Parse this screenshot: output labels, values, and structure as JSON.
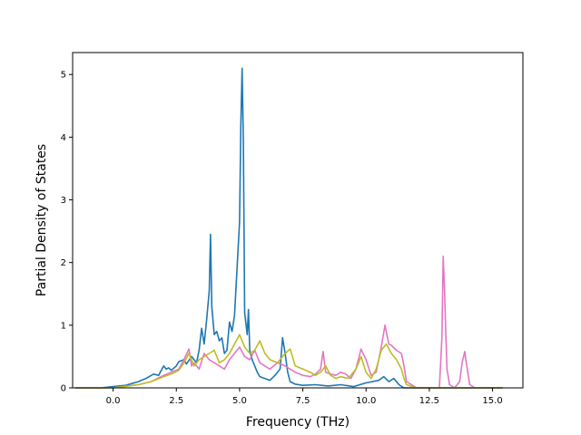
{
  "chart_data": {
    "type": "line",
    "title": "",
    "xlabel": "Frequency (THz)",
    "ylabel": "Partial Density of States",
    "xlim": [
      -1.6,
      16.2
    ],
    "ylim": [
      0,
      5.35
    ],
    "xticks": [
      0.0,
      2.5,
      5.0,
      7.5,
      10.0,
      12.5,
      15.0
    ],
    "xtick_labels": [
      "0.0",
      "2.5",
      "5.0",
      "7.5",
      "10.0",
      "12.5",
      "15.0"
    ],
    "yticks": [
      0,
      1,
      2,
      3,
      4,
      5
    ],
    "ytick_labels": [
      "0",
      "1",
      "2",
      "3",
      "4",
      "5"
    ],
    "grid": false,
    "legend": null,
    "series": [
      {
        "color": "#1f77b4",
        "x": [
          -1.5,
          -0.5,
          0.0,
          0.5,
          1.0,
          1.3,
          1.6,
          1.8,
          2.0,
          2.1,
          2.2,
          2.3,
          2.5,
          2.6,
          2.8,
          2.9,
          3.1,
          3.3,
          3.4,
          3.5,
          3.6,
          3.7,
          3.8,
          3.85,
          3.9,
          4.0,
          4.1,
          4.2,
          4.3,
          4.4,
          4.5,
          4.6,
          4.7,
          4.8,
          4.9,
          5.0,
          5.05,
          5.1,
          5.15,
          5.2,
          5.3,
          5.35,
          5.4,
          5.5,
          5.6,
          5.7,
          5.8,
          6.0,
          6.2,
          6.4,
          6.6,
          6.7,
          6.8,
          6.9,
          7.0,
          7.2,
          7.5,
          8.0,
          8.5,
          9.0,
          9.5,
          10.0,
          10.5,
          10.7,
          10.9,
          11.1,
          11.3,
          11.5,
          12.0,
          13.0,
          14.0,
          15.0,
          15.4
        ],
        "y": [
          0.0,
          0.0,
          0.02,
          0.04,
          0.1,
          0.15,
          0.22,
          0.2,
          0.35,
          0.3,
          0.32,
          0.28,
          0.35,
          0.42,
          0.45,
          0.38,
          0.5,
          0.4,
          0.6,
          0.95,
          0.7,
          1.1,
          1.55,
          2.45,
          1.3,
          0.85,
          0.9,
          0.75,
          0.8,
          0.55,
          0.6,
          1.05,
          0.9,
          1.15,
          1.9,
          2.65,
          4.2,
          5.1,
          3.9,
          1.2,
          0.85,
          1.25,
          0.6,
          0.45,
          0.35,
          0.25,
          0.18,
          0.15,
          0.12,
          0.2,
          0.3,
          0.8,
          0.55,
          0.25,
          0.1,
          0.06,
          0.04,
          0.05,
          0.03,
          0.05,
          0.02,
          0.08,
          0.12,
          0.18,
          0.1,
          0.15,
          0.05,
          0.0,
          0.0,
          0.0,
          0.0,
          0.0,
          0.0
        ]
      },
      {
        "color": "#e377c2",
        "x": [
          -1.5,
          0.0,
          1.0,
          1.5,
          2.0,
          2.3,
          2.6,
          2.8,
          3.0,
          3.1,
          3.2,
          3.4,
          3.6,
          3.8,
          4.0,
          4.2,
          4.4,
          4.6,
          4.8,
          5.0,
          5.2,
          5.4,
          5.6,
          5.8,
          6.0,
          6.2,
          6.5,
          6.8,
          7.0,
          7.2,
          7.5,
          7.8,
          8.0,
          8.2,
          8.3,
          8.4,
          8.6,
          8.8,
          9.0,
          9.2,
          9.4,
          9.6,
          9.8,
          10.0,
          10.2,
          10.4,
          10.6,
          10.75,
          10.9,
          11.0,
          11.2,
          11.4,
          11.5,
          11.6,
          12.0,
          12.5,
          12.9,
          13.0,
          13.05,
          13.1,
          13.15,
          13.2,
          13.3,
          13.5,
          13.7,
          13.8,
          13.9,
          14.0,
          14.1,
          14.3,
          15.0,
          15.4
        ],
        "y": [
          0.0,
          0.0,
          0.05,
          0.1,
          0.2,
          0.25,
          0.3,
          0.45,
          0.62,
          0.35,
          0.4,
          0.3,
          0.55,
          0.45,
          0.4,
          0.35,
          0.3,
          0.45,
          0.55,
          0.65,
          0.5,
          0.45,
          0.6,
          0.4,
          0.35,
          0.3,
          0.4,
          0.35,
          0.3,
          0.25,
          0.2,
          0.18,
          0.22,
          0.3,
          0.58,
          0.25,
          0.22,
          0.2,
          0.25,
          0.22,
          0.15,
          0.3,
          0.62,
          0.45,
          0.2,
          0.25,
          0.65,
          1.0,
          0.7,
          0.68,
          0.6,
          0.55,
          0.35,
          0.1,
          0.0,
          0.0,
          0.0,
          0.8,
          2.1,
          1.6,
          0.9,
          0.3,
          0.05,
          0.0,
          0.1,
          0.4,
          0.58,
          0.3,
          0.05,
          0.0,
          0.0,
          0.0
        ]
      },
      {
        "color": "#bcbd22",
        "x": [
          -1.5,
          0.0,
          1.0,
          1.5,
          2.0,
          2.3,
          2.6,
          2.8,
          3.0,
          3.2,
          3.4,
          3.6,
          3.8,
          4.0,
          4.2,
          4.4,
          4.6,
          4.8,
          5.0,
          5.2,
          5.4,
          5.6,
          5.8,
          6.0,
          6.2,
          6.5,
          6.8,
          7.0,
          7.2,
          7.5,
          7.8,
          8.0,
          8.2,
          8.4,
          8.6,
          8.8,
          9.0,
          9.3,
          9.6,
          9.8,
          10.0,
          10.2,
          10.4,
          10.6,
          10.8,
          11.0,
          11.2,
          11.4,
          11.5,
          11.6,
          12.0,
          13.0,
          14.0,
          15.0,
          15.4
        ],
        "y": [
          0.0,
          0.0,
          0.05,
          0.1,
          0.18,
          0.22,
          0.28,
          0.4,
          0.55,
          0.35,
          0.45,
          0.5,
          0.55,
          0.6,
          0.4,
          0.45,
          0.55,
          0.7,
          0.85,
          0.65,
          0.55,
          0.6,
          0.75,
          0.55,
          0.45,
          0.4,
          0.55,
          0.62,
          0.35,
          0.3,
          0.25,
          0.2,
          0.25,
          0.35,
          0.2,
          0.15,
          0.18,
          0.15,
          0.3,
          0.5,
          0.25,
          0.15,
          0.3,
          0.6,
          0.7,
          0.55,
          0.45,
          0.3,
          0.15,
          0.05,
          0.0,
          0.0,
          0.0,
          0.0,
          0.0
        ]
      }
    ]
  }
}
